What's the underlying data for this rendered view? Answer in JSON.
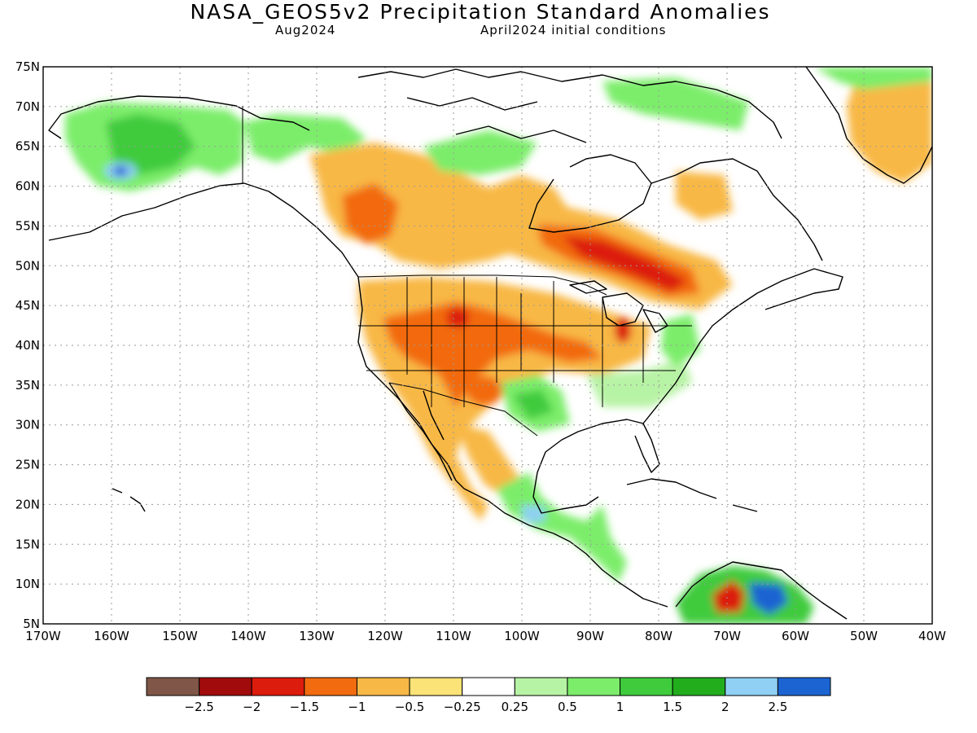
{
  "header": {
    "title": "NASA_GEOS5v2 Precipitation Standard Anomalies",
    "valid": "Aug2024",
    "init": "April2024 initial conditions"
  },
  "map": {
    "lon_range": [
      -170,
      -40
    ],
    "lat_range": [
      5,
      75
    ],
    "lat_labels": [
      "75N",
      "70N",
      "65N",
      "60N",
      "55N",
      "50N",
      "45N",
      "40N",
      "35N",
      "30N",
      "25N",
      "20N",
      "15N",
      "10N",
      "5N"
    ],
    "lon_labels": [
      "170W",
      "160W",
      "150W",
      "140W",
      "130W",
      "120W",
      "110W",
      "100W",
      "90W",
      "80W",
      "70W",
      "60W",
      "50W",
      "40W"
    ],
    "grid": "dotted"
  },
  "colorbar": {
    "colors": [
      "#7f5647",
      "#a10b0b",
      "#dc1c0c",
      "#f26b0f",
      "#f8b845",
      "#fce378",
      "#ffffff",
      "#b7f3a5",
      "#7ced6a",
      "#3fcb3c",
      "#22ad1d",
      "#8fd0f4",
      "#1c64d2"
    ],
    "labels": [
      "−2.5",
      "−2",
      "−1.5",
      "−1",
      "−0.5",
      "−0.25",
      "0.25",
      "0.5",
      "1",
      "1.5",
      "2",
      "2.5"
    ]
  },
  "regions": [
    {
      "name": "alaska-wet",
      "lon": -153,
      "lat": 65,
      "cat": "wet",
      "color": "#3fcb3c"
    },
    {
      "name": "western-canada-dry",
      "lon": -120,
      "lat": 58,
      "cat": "dry",
      "color": "#f8b845"
    },
    {
      "name": "ontario-quebec-very-dry",
      "lon": -85,
      "lat": 50,
      "cat": "very-dry",
      "color": "#dc1c0c"
    },
    {
      "name": "western-us-dry",
      "lon": -115,
      "lat": 40,
      "cat": "dry",
      "color": "#f8b845"
    },
    {
      "name": "southern-plains-wet",
      "lon": -97,
      "lat": 32,
      "cat": "wet",
      "color": "#7ced6a"
    },
    {
      "name": "southeast-us-wet",
      "lon": -87,
      "lat": 33,
      "cat": "wet",
      "color": "#7ced6a"
    },
    {
      "name": "greenland-dry",
      "lon": -43,
      "lat": 67,
      "cat": "dry",
      "color": "#f8b845"
    },
    {
      "name": "northern-south-america-very-wet",
      "lon": -65,
      "lat": 8,
      "cat": "very-wet",
      "color": "#1c64d2"
    }
  ]
}
